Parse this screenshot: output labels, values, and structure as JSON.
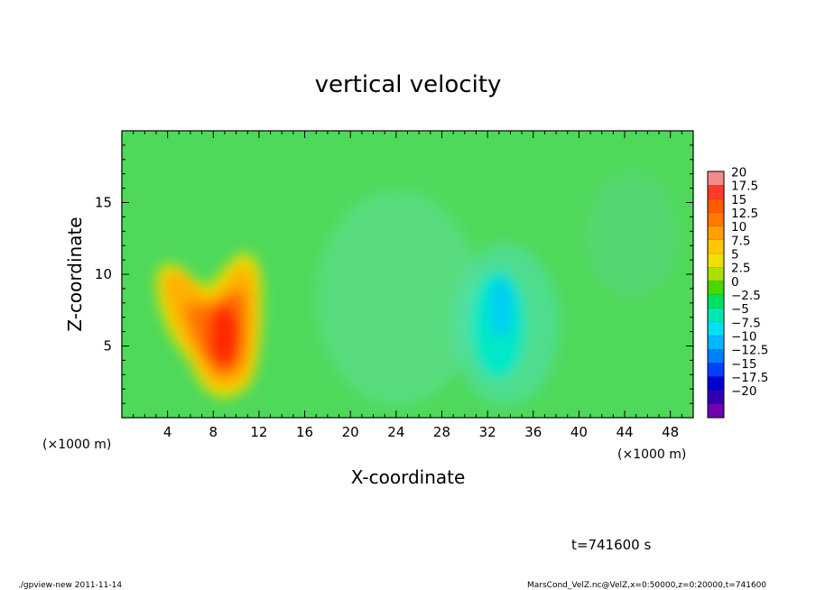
{
  "chart_data": {
    "type": "heatmap",
    "title": "vertical velocity",
    "xlabel": "X-coordinate",
    "ylabel": "Z-coordinate",
    "x_unit_left": "(×1000 m)",
    "x_unit_right": "(×1000 m)",
    "xlim": [
      0,
      50
    ],
    "ylim": [
      0,
      20
    ],
    "x_ticks": [
      "4",
      "8",
      "12",
      "16",
      "20",
      "24",
      "28",
      "32",
      "36",
      "40",
      "44",
      "48"
    ],
    "x_tick_values": [
      4,
      8,
      12,
      16,
      20,
      24,
      28,
      32,
      36,
      40,
      44,
      48
    ],
    "y_ticks": [
      "5",
      "10",
      "15"
    ],
    "y_tick_values": [
      5,
      10,
      15
    ],
    "colorbar": {
      "labels": [
        "20",
        "17.5",
        "15",
        "12.5",
        "10",
        "7.5",
        "5",
        "2.5",
        "0",
        "−2.5",
        "−5",
        "−7.5",
        "−10",
        "−12.5",
        "−15",
        "−17.5",
        "−20"
      ],
      "values": [
        20,
        17.5,
        15,
        12.5,
        10,
        7.5,
        5,
        2.5,
        0,
        -2.5,
        -5,
        -7.5,
        -10,
        -12.5,
        -15,
        -17.5,
        -20
      ],
      "colors": [
        "#f08c8c",
        "#ff3a2a",
        "#ff5a00",
        "#ff7800",
        "#ffa000",
        "#ffc800",
        "#f0e000",
        "#a8e000",
        "#48d800",
        "#00e060",
        "#00e8b0",
        "#00e0f0",
        "#00b8ff",
        "#0080ff",
        "#0040ff",
        "#0000d0",
        "#3000b0",
        "#7000b0"
      ]
    },
    "field_features": [
      {
        "name": "updraft",
        "x": 8.5,
        "z": 6.5,
        "peak": 15
      },
      {
        "name": "updraft-left-lobe",
        "x": 4.3,
        "z": 9.5,
        "peak": 7.5
      },
      {
        "name": "updraft-right-lobe",
        "x": 11,
        "z": 10,
        "peak": 7.5
      },
      {
        "name": "downdraft",
        "x": 33,
        "z": 8,
        "peak": -7.5
      }
    ],
    "annotation": "t=741600 s"
  },
  "footer": {
    "left": "./gpview-new   2011-11-14",
    "right": "MarsCond_VelZ.nc@VelZ,x=0:50000,z=0:20000,t=741600"
  }
}
